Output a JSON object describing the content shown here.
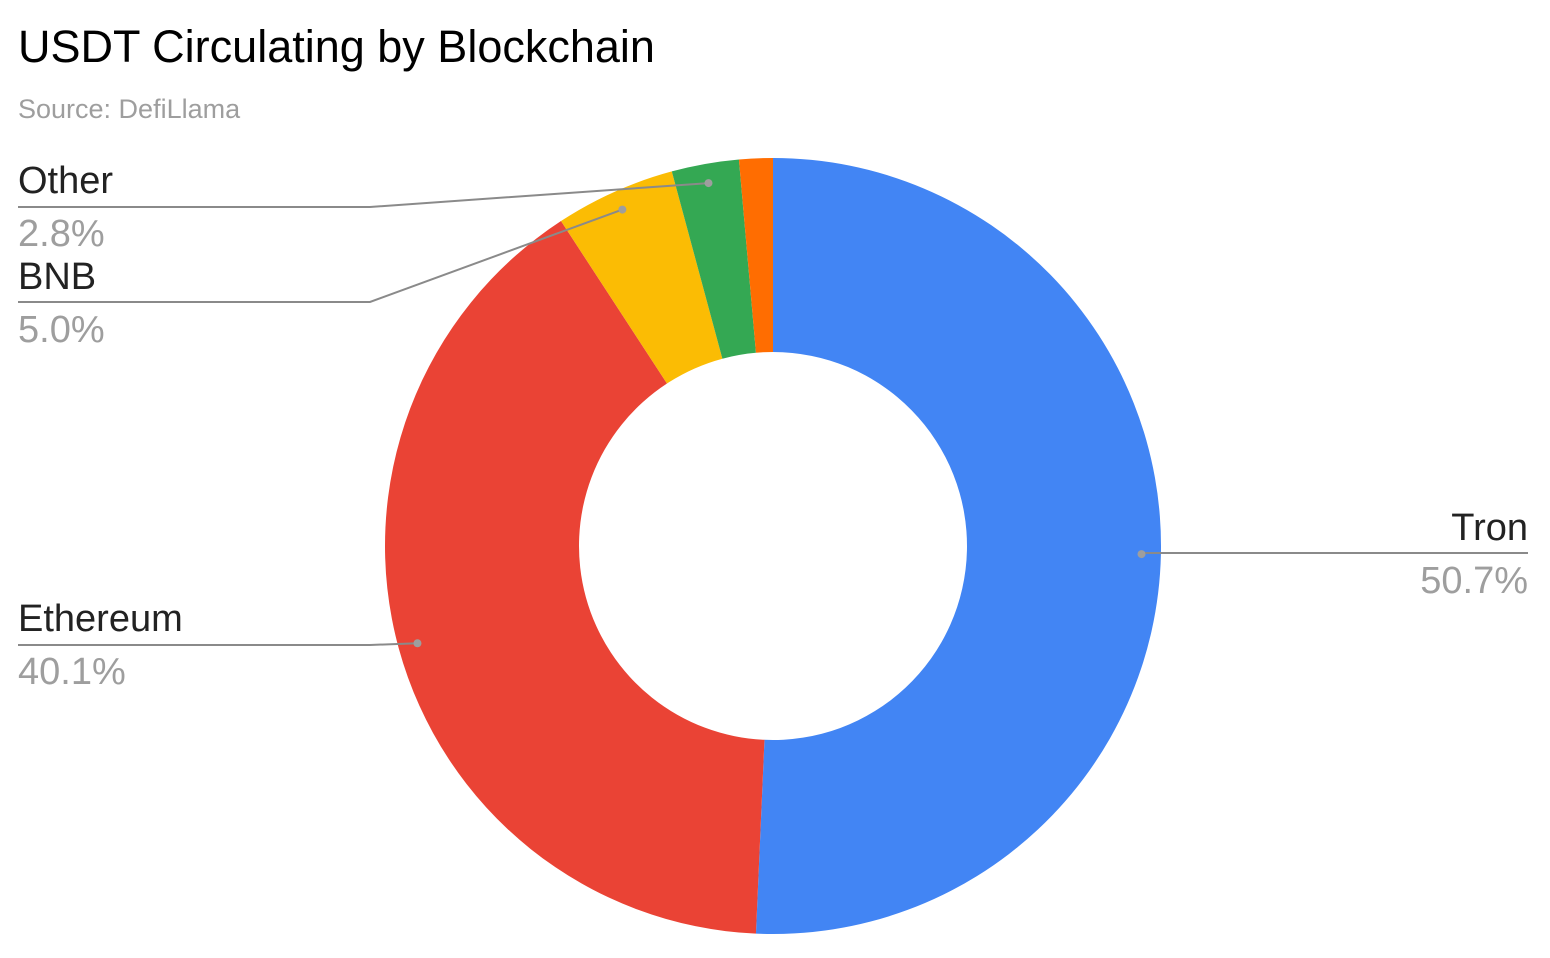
{
  "chart_data": {
    "type": "donut",
    "title": "USDT Circulating by Blockchain",
    "subtitle": "Source: DefiLlama",
    "categories": [
      "Tron",
      "Ethereum",
      "BNB",
      "Other",
      null
    ],
    "values": [
      50.7,
      40.1,
      5.0,
      2.8,
      1.4
    ],
    "value_labels": [
      "50.7%",
      "40.1%",
      "5.0%",
      "2.8%",
      null
    ],
    "colors": [
      "#4285f4",
      "#ea4335",
      "#fbbc04",
      "#34a853",
      "#ff6d01"
    ]
  }
}
